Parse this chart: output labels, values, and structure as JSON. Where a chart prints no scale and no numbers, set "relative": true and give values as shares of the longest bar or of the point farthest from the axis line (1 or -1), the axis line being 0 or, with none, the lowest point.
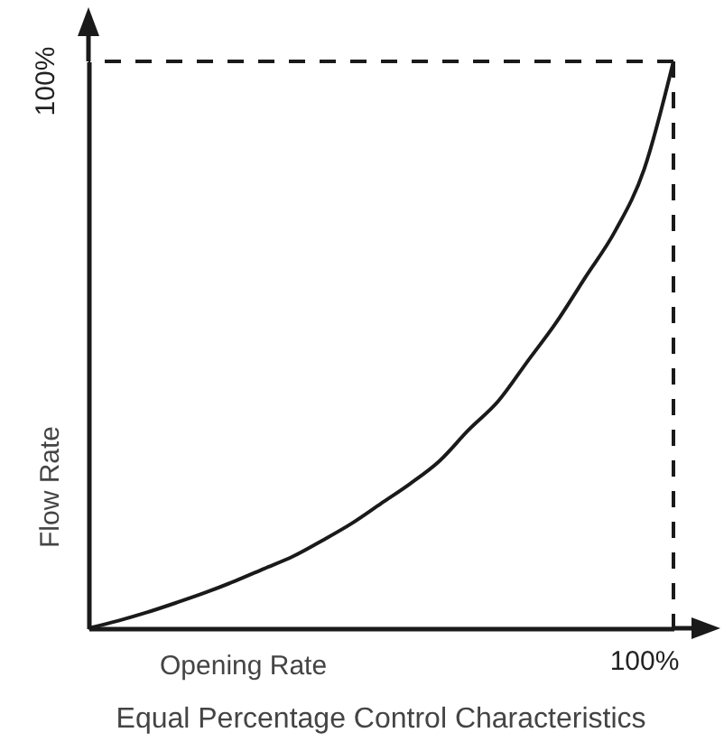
{
  "chart_data": {
    "type": "line",
    "title": "Equal Percentage Control Characteristics",
    "xlabel": "Opening Rate",
    "ylabel": "Flow Rate",
    "relative": true,
    "categories": [
      null,
      null,
      null,
      null,
      null,
      null,
      null,
      null,
      null,
      null,
      null,
      null,
      null,
      null,
      null,
      null,
      null,
      null,
      null,
      null,
      null
    ],
    "series": [
      {
        "color": "#1a1a1a",
        "values": [
          0,
          0.013,
          0.028,
          0.045,
          0.063,
          0.083,
          0.105,
          0.127,
          0.155,
          0.185,
          0.22,
          0.255,
          0.295,
          0.35,
          0.4,
          0.47,
          0.54,
          0.62,
          0.7,
          0.81,
          1
        ]
      }
    ],
    "ref_lines": [
      {
        "axis": "y",
        "value": 1,
        "color": "#1a1a1a",
        "line_style": "dashed"
      }
    ],
    "annotations": [
      "100%",
      "100%"
    ]
  }
}
